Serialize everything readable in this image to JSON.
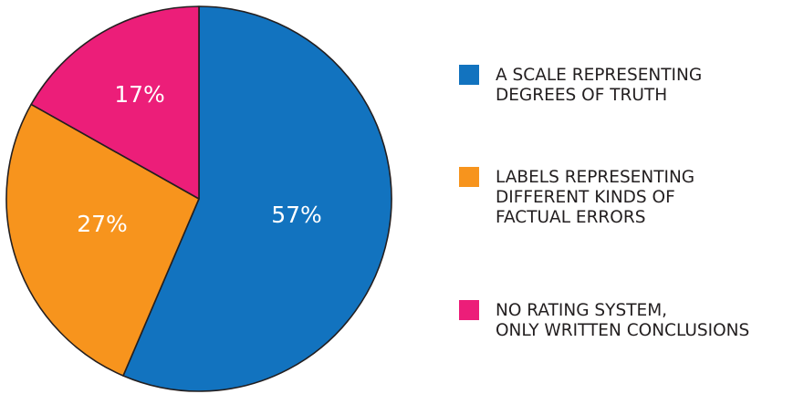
{
  "chart_data": {
    "type": "pie",
    "slices": [
      {
        "value": 57,
        "label": "57%",
        "legend": [
          "A SCALE REPRESENTING",
          "DEGREES OF TRUTH"
        ],
        "color": "#1273bf"
      },
      {
        "value": 27,
        "label": "27%",
        "legend": [
          "LABELS REPRESENTING",
          "DIFFERENT KINDS OF",
          "FACTUAL ERRORS"
        ],
        "color": "#f7941d"
      },
      {
        "value": 17,
        "label": "17%",
        "legend": [
          "NO RATING SYSTEM,",
          "ONLY WRITTEN CONCLUSIONS"
        ],
        "color": "#ec1e79"
      }
    ],
    "start_angle": "12 o'clock",
    "direction": "clockwise",
    "legend_position": "right",
    "title": ""
  }
}
